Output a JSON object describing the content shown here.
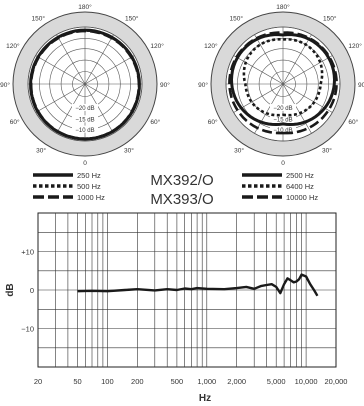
{
  "models": [
    "MX392/O",
    "MX393/O"
  ],
  "chart_data": [
    {
      "type": "polar",
      "angle_labels": [
        "180°",
        "150°",
        "120°",
        "90°",
        "60°",
        "30°",
        "0",
        "30°",
        "60°",
        "90°",
        "120°",
        "150°"
      ],
      "radial_labels": [
        "−20 dB",
        "−15 dB",
        "−10 dB"
      ],
      "legend": [
        "250 Hz",
        "500 Hz",
        "1000 Hz"
      ],
      "series": [
        {
          "name": "250 Hz",
          "style": "solid"
        },
        {
          "name": "500 Hz",
          "style": "dotted"
        },
        {
          "name": "1000 Hz",
          "style": "dashed"
        }
      ]
    },
    {
      "type": "polar",
      "angle_labels": [
        "180°",
        "150°",
        "120°",
        "90°",
        "60°",
        "30°",
        "0",
        "30°",
        "60°",
        "90°",
        "120°",
        "150°"
      ],
      "radial_labels": [
        "−20 dB",
        "−15 dB",
        "−10 dB"
      ],
      "legend": [
        "2500 Hz",
        "6400 Hz",
        "10000 Hz"
      ],
      "series": [
        {
          "name": "2500 Hz",
          "style": "solid"
        },
        {
          "name": "6400 Hz",
          "style": "dotted"
        },
        {
          "name": "10000 Hz",
          "style": "dashed"
        }
      ]
    },
    {
      "type": "line",
      "xscale": "log",
      "xlim": [
        20,
        20000
      ],
      "ylim": [
        -20,
        20
      ],
      "xticks": [
        20,
        50,
        100,
        200,
        500,
        1000,
        2000,
        5000,
        10000,
        20000
      ],
      "xtick_labels": [
        "20",
        "50",
        "100",
        "200",
        "500",
        "1,000",
        "2,000",
        "5,000",
        "10,000",
        "20,000"
      ],
      "yticks": [
        10,
        0,
        -10
      ],
      "ytick_labels": [
        "+10",
        "0",
        "−10"
      ],
      "xlabel": "Hz",
      "ylabel": "dB",
      "series": [
        {
          "x": [
            50,
            70,
            100,
            150,
            200,
            300,
            400,
            500,
            600,
            700,
            800,
            1000,
            1500,
            2000,
            2500,
            3000,
            3500,
            4000,
            4500,
            5000,
            5500,
            6000,
            6500,
            7000,
            7500,
            8000,
            8500,
            9000,
            10000,
            11000,
            12000,
            13000
          ],
          "y": [
            -0.3,
            -0.2,
            -0.3,
            0,
            0.2,
            -0.1,
            0.2,
            0,
            0.4,
            0.2,
            0.5,
            0.3,
            0.2,
            0.5,
            0.8,
            0.3,
            1.0,
            1.3,
            1.5,
            0.8,
            -0.8,
            1.5,
            3.0,
            2.5,
            2.0,
            2.2,
            2.8,
            4.0,
            3.5,
            1.5,
            0,
            -1.5
          ]
        }
      ]
    }
  ]
}
